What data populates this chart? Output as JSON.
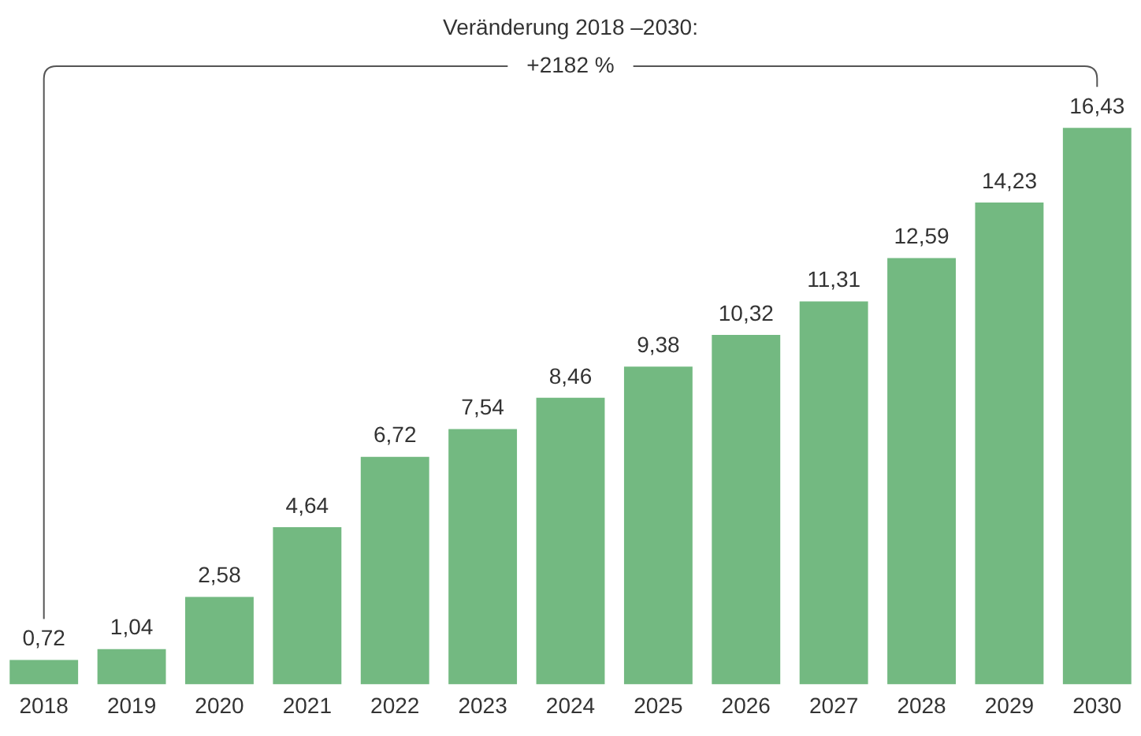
{
  "chart_data": {
    "type": "bar",
    "categories": [
      "2018",
      "2019",
      "2020",
      "2021",
      "2022",
      "2023",
      "2024",
      "2025",
      "2026",
      "2027",
      "2028",
      "2029",
      "2030"
    ],
    "values": [
      0.72,
      1.04,
      2.58,
      4.64,
      6.72,
      7.54,
      8.46,
      9.38,
      10.32,
      11.31,
      12.59,
      14.23,
      16.43
    ],
    "value_labels": [
      "0,72",
      "1,04",
      "2,58",
      "4,64",
      "6,72",
      "7,54",
      "8,46",
      "9,38",
      "10,32",
      "11,31",
      "12,59",
      "14,23",
      "16,43"
    ],
    "color": "#73b981",
    "annotations": [
      "Veränderung 2018 –2030:",
      "+2182 %"
    ],
    "grid": false,
    "legend": false
  }
}
